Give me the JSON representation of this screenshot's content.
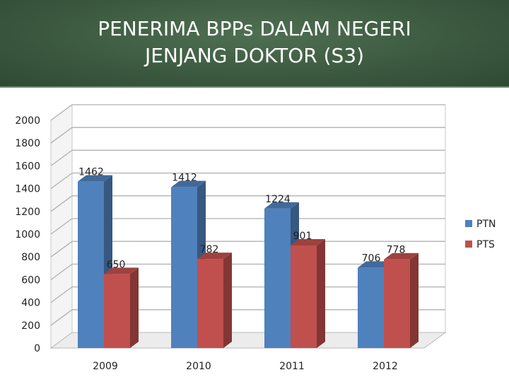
{
  "title_line1": "PENERIMA BPPs DALAM NEGERI",
  "title_line2": "JENJANG DOKTOR (S3)",
  "chart_data": {
    "type": "bar",
    "style": "3d-clustered-column",
    "categories": [
      "2009",
      "2010",
      "2011",
      "2012"
    ],
    "series": [
      {
        "name": "PTN",
        "values": [
          1462,
          1412,
          1224,
          706
        ],
        "color": "#4f81bd"
      },
      {
        "name": "PTS",
        "values": [
          650,
          782,
          901,
          778
        ],
        "color": "#c0504d"
      }
    ],
    "ylim": [
      0,
      2000
    ],
    "yticks": [
      0,
      200,
      400,
      600,
      800,
      1000,
      1200,
      1400,
      1600,
      1800,
      2000
    ],
    "grid": true,
    "legend": "right"
  }
}
